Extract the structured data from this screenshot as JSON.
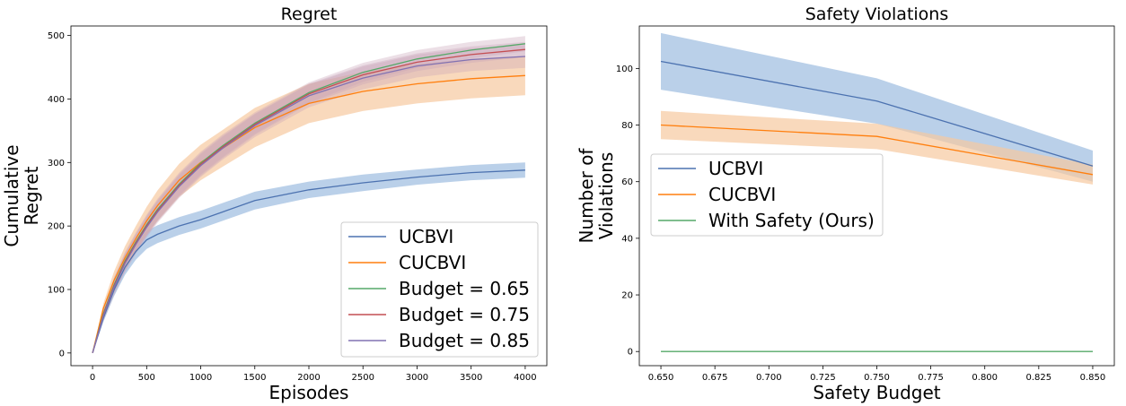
{
  "colors": {
    "ucbvi": "#4c72b0",
    "cucbvi": "#ff7f0e",
    "budget_065": "#55a868",
    "budget_075": "#c44e52",
    "budget_085": "#8172b2",
    "with_safety": "#55a868",
    "ucbvi_band": "#a9c4e3",
    "cucbvi_band": "#f7c9a0",
    "mix_band": "#c9a4b8"
  },
  "chart_data": [
    {
      "type": "line",
      "title": "Regret",
      "xlabel": "Episodes",
      "ylabel": [
        "Cumulative",
        "Regret"
      ],
      "xlim": [
        -200,
        4200
      ],
      "ylim": [
        -20,
        515
      ],
      "xticks": [
        0,
        500,
        1000,
        1500,
        2000,
        2500,
        3000,
        3500,
        4000
      ],
      "yticks": [
        0,
        100,
        200,
        300,
        400,
        500
      ],
      "legend": "lower-right",
      "series": [
        {
          "name": "UCBVI",
          "key": "ucbvi",
          "x": [
            0,
            100,
            200,
            300,
            400,
            500,
            600,
            800,
            1000,
            1200,
            1500,
            2000,
            2500,
            3000,
            3500,
            4000
          ],
          "y": [
            0,
            55,
            100,
            135,
            160,
            178,
            187,
            200,
            210,
            222,
            240,
            257,
            268,
            277,
            284,
            288
          ],
          "band": [
            0,
            6,
            10,
            12,
            13,
            14,
            14,
            14,
            14,
            14,
            14,
            13,
            13,
            12,
            12,
            12
          ]
        },
        {
          "name": "CUCBVI",
          "key": "cucbvi",
          "x": [
            0,
            100,
            200,
            300,
            400,
            500,
            600,
            800,
            1000,
            1200,
            1500,
            2000,
            2500,
            3000,
            3500,
            4000
          ],
          "y": [
            0,
            70,
            115,
            150,
            180,
            208,
            232,
            272,
            300,
            322,
            355,
            393,
            412,
            424,
            432,
            437
          ],
          "band": [
            0,
            8,
            14,
            18,
            20,
            22,
            24,
            26,
            28,
            29,
            31,
            31,
            31,
            31,
            31,
            31
          ]
        },
        {
          "name": "Budget = 0.65",
          "key": "budget_065",
          "x": [
            0,
            100,
            200,
            300,
            400,
            500,
            600,
            800,
            1000,
            1200,
            1500,
            2000,
            2500,
            3000,
            3500,
            4000
          ],
          "y": [
            0,
            62,
            108,
            145,
            175,
            202,
            226,
            266,
            299,
            326,
            362,
            410,
            442,
            463,
            477,
            487
          ],
          "band": [
            0,
            8,
            12,
            14,
            15,
            16,
            17,
            18,
            18,
            18,
            17,
            16,
            15,
            14,
            13,
            12
          ]
        },
        {
          "name": "Budget = 0.75",
          "key": "budget_075",
          "x": [
            0,
            100,
            200,
            300,
            400,
            500,
            600,
            800,
            1000,
            1200,
            1500,
            2000,
            2500,
            3000,
            3500,
            4000
          ],
          "y": [
            0,
            60,
            106,
            143,
            173,
            200,
            224,
            264,
            297,
            324,
            360,
            408,
            438,
            458,
            470,
            478
          ],
          "band": [
            0,
            8,
            12,
            14,
            15,
            16,
            17,
            18,
            18,
            18,
            17,
            16,
            15,
            14,
            13,
            12
          ]
        },
        {
          "name": "Budget = 0.85",
          "key": "budget_085",
          "x": [
            0,
            100,
            200,
            300,
            400,
            500,
            600,
            800,
            1000,
            1200,
            1500,
            2000,
            2500,
            3000,
            3500,
            4000
          ],
          "y": [
            0,
            58,
            104,
            141,
            171,
            198,
            222,
            262,
            295,
            322,
            358,
            405,
            433,
            452,
            462,
            467
          ],
          "band": [
            0,
            8,
            12,
            14,
            15,
            16,
            17,
            18,
            18,
            18,
            18,
            18,
            18,
            18,
            18,
            18
          ]
        }
      ]
    },
    {
      "type": "line",
      "title": "Safety Violations",
      "xlabel": "Safety Budget",
      "ylabel": [
        "Number of",
        "Violations"
      ],
      "xlim": [
        0.64,
        0.86
      ],
      "ylim": [
        -5,
        115
      ],
      "xticks": [
        "0.650",
        "0.675",
        "0.700",
        "0.725",
        "0.750",
        "0.775",
        "0.800",
        "0.825",
        "0.850"
      ],
      "yticks": [
        0,
        20,
        40,
        60,
        80,
        100
      ],
      "legend": "center-left",
      "series": [
        {
          "name": "UCBVI",
          "key": "ucbvi",
          "x": [
            0.65,
            0.75,
            0.85
          ],
          "y": [
            102.5,
            88.5,
            65.5
          ],
          "band": [
            10,
            8,
            5.5
          ]
        },
        {
          "name": "CUCBVI",
          "key": "cucbvi",
          "x": [
            0.65,
            0.75,
            0.85
          ],
          "y": [
            80,
            76,
            62.5
          ],
          "band": [
            5,
            4.5,
            3.5
          ]
        },
        {
          "name": "With Safety (Ours)",
          "key": "with_safety",
          "x": [
            0.65,
            0.75,
            0.85
          ],
          "y": [
            0,
            0,
            0
          ],
          "band": [
            0,
            0,
            0
          ]
        }
      ]
    }
  ]
}
